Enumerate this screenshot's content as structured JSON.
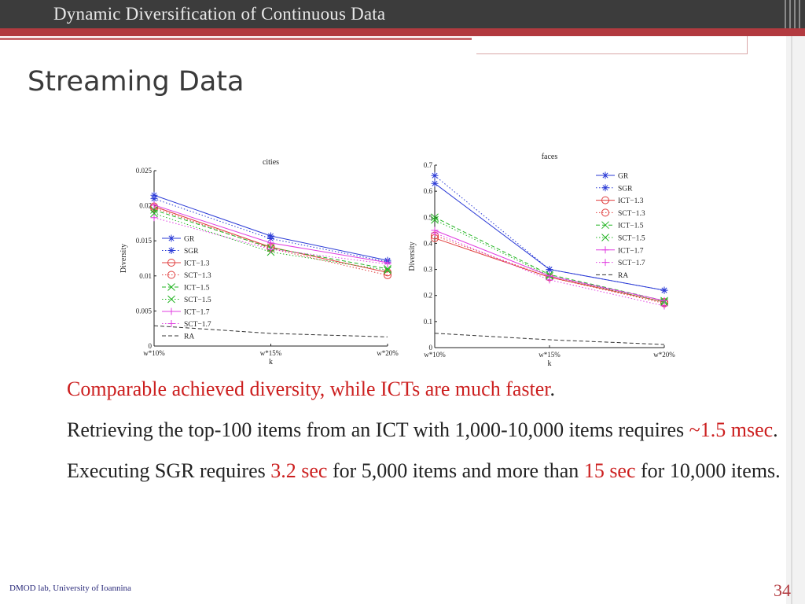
{
  "header": {
    "title": "Dynamic Diversification of Continuous Data"
  },
  "slide": {
    "title": "Streaming Data"
  },
  "bullets": [
    {
      "parts": [
        {
          "text": "Comparable achieved diversity, while ICTs are much faster",
          "red": true
        },
        {
          "text": ".",
          "red": false
        }
      ]
    },
    {
      "parts": [
        {
          "text": "Retrieving the top-100 items from an ICT with 1,000-10,000 items requires ",
          "red": false
        },
        {
          "text": "~1.5 msec",
          "red": true
        },
        {
          "text": ".",
          "red": false
        }
      ]
    },
    {
      "parts": [
        {
          "text": "Executing SGR requires ",
          "red": false
        },
        {
          "text": "3.2 sec",
          "red": true
        },
        {
          "text": " for 5,000 items and more than ",
          "red": false
        },
        {
          "text": "15 sec",
          "red": true
        },
        {
          "text": " for 10,000 items.",
          "red": false
        }
      ]
    }
  ],
  "footer": {
    "left": "DMOD lab, University of Ioannina",
    "page": "34"
  },
  "chart_data": [
    {
      "type": "line",
      "title": "cities",
      "xlabel": "k",
      "ylabel": "Diversity",
      "categories": [
        "w*10%",
        "w*15%",
        "w*20%"
      ],
      "ylim": [
        0,
        0.025
      ],
      "yticks": [
        "0",
        "0.005",
        "0.01",
        "0.015",
        "0.02",
        "0.025"
      ],
      "ytick_values": [
        0,
        0.005,
        0.01,
        0.015,
        0.02,
        0.025
      ],
      "legend": "center-left",
      "series": [
        {
          "name": "GR",
          "values": [
            0.0215,
            0.0157,
            0.0122
          ],
          "color": "#2a3ad6",
          "dash": "solid",
          "marker": "star"
        },
        {
          "name": "SGR",
          "values": [
            0.021,
            0.0153,
            0.012
          ],
          "color": "#2a3ad6",
          "dash": "dotted",
          "marker": "star"
        },
        {
          "name": "ICT−1.3",
          "values": [
            0.0199,
            0.0141,
            0.0105
          ],
          "color": "#e03c3c",
          "dash": "solid",
          "marker": "circle"
        },
        {
          "name": "SCT−1.3",
          "values": [
            0.0197,
            0.0139,
            0.0101
          ],
          "color": "#e03c3c",
          "dash": "dotted",
          "marker": "circle"
        },
        {
          "name": "ICT−1.5",
          "values": [
            0.0194,
            0.014,
            0.011
          ],
          "color": "#22b422",
          "dash": "dashed",
          "marker": "x"
        },
        {
          "name": "SCT−1.5",
          "values": [
            0.0189,
            0.0134,
            0.0108
          ],
          "color": "#22b422",
          "dash": "dotted",
          "marker": "x"
        },
        {
          "name": "ICT−1.7",
          "values": [
            0.0201,
            0.0147,
            0.0119
          ],
          "color": "#e03ce0",
          "dash": "solid",
          "marker": "plus"
        },
        {
          "name": "SCT−1.7",
          "values": [
            0.0183,
            0.0138,
            0.0117
          ],
          "color": "#e03ce0",
          "dash": "dotted",
          "marker": "plus"
        },
        {
          "name": "RA",
          "values": [
            0.0029,
            0.0018,
            0.0013
          ],
          "color": "#333333",
          "dash": "dashed",
          "marker": "none"
        }
      ]
    },
    {
      "type": "line",
      "title": "faces",
      "xlabel": "k",
      "ylabel": "Diversity",
      "categories": [
        "w*10%",
        "w*15%",
        "w*20%"
      ],
      "ylim": [
        0,
        0.7
      ],
      "yticks": [
        "0",
        "0.1",
        "0.2",
        "0.3",
        "0.4",
        "0.5",
        "0.6",
        "0.7"
      ],
      "ytick_values": [
        0,
        0.1,
        0.2,
        0.3,
        0.4,
        0.5,
        0.6,
        0.7
      ],
      "legend": "top-right",
      "series": [
        {
          "name": "GR",
          "values": [
            0.63,
            0.3,
            0.22
          ],
          "color": "#2a3ad6",
          "dash": "solid",
          "marker": "star"
        },
        {
          "name": "SGR",
          "values": [
            0.66,
            0.3,
            0.22
          ],
          "color": "#2a3ad6",
          "dash": "dotted",
          "marker": "star"
        },
        {
          "name": "ICT−1.3",
          "values": [
            0.42,
            0.27,
            0.175
          ],
          "color": "#e03c3c",
          "dash": "solid",
          "marker": "circle"
        },
        {
          "name": "SCT−1.3",
          "values": [
            0.43,
            0.27,
            0.17
          ],
          "color": "#e03c3c",
          "dash": "dotted",
          "marker": "circle"
        },
        {
          "name": "ICT−1.5",
          "values": [
            0.5,
            0.28,
            0.18
          ],
          "color": "#22b422",
          "dash": "dashed",
          "marker": "x"
        },
        {
          "name": "SCT−1.5",
          "values": [
            0.49,
            0.275,
            0.175
          ],
          "color": "#22b422",
          "dash": "dotted",
          "marker": "x"
        },
        {
          "name": "ICT−1.7",
          "values": [
            0.45,
            0.275,
            0.18
          ],
          "color": "#e03ce0",
          "dash": "solid",
          "marker": "plus"
        },
        {
          "name": "SCT−1.7",
          "values": [
            0.44,
            0.26,
            0.16
          ],
          "color": "#e03ce0",
          "dash": "dotted",
          "marker": "plus"
        },
        {
          "name": "RA",
          "values": [
            0.055,
            0.03,
            0.012
          ],
          "color": "#333333",
          "dash": "dashed",
          "marker": "none"
        }
      ]
    }
  ]
}
